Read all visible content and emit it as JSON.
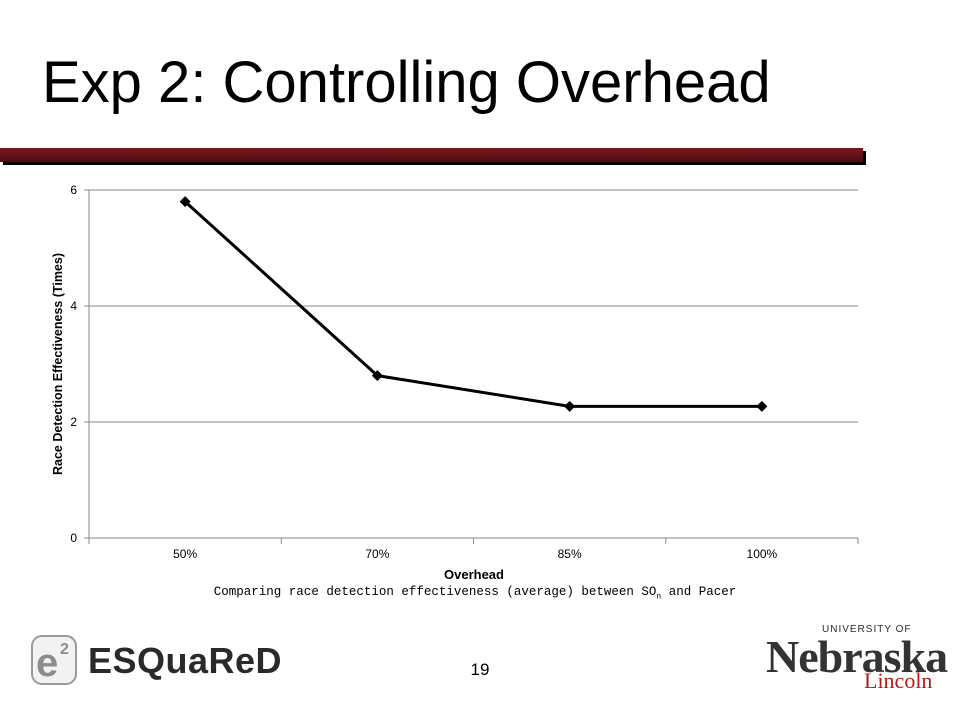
{
  "slide": {
    "title": "Exp 2: Controlling Overhead",
    "caption_prefix": "Comparing race detection effectiveness (average) between SO",
    "caption_sub": "n",
    "caption_suffix": " and Pacer",
    "page_number": "19"
  },
  "logos": {
    "esquared_mark": "e2",
    "esquared_text": "ESQuaReD",
    "unl_top": "UNIVERSITY OF",
    "unl_name": "Nebraska",
    "unl_sub": "Lincoln"
  },
  "chart_data": {
    "type": "line",
    "categories": [
      "50%",
      "70%",
      "85%",
      "100%"
    ],
    "series": [
      {
        "values": [
          5.8,
          2.8,
          2.27,
          2.27
        ]
      }
    ],
    "xlabel": "Overhead",
    "ylabel": "Race Detection Effectiveness (Times)",
    "ylim": [
      0,
      6
    ],
    "yticks": [
      0,
      2,
      4,
      6
    ],
    "grid": true,
    "legend": "none",
    "line_color": "#000000",
    "marker": "diamond"
  }
}
